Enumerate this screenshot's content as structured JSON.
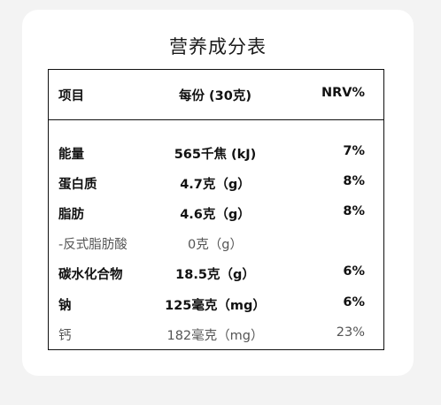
{
  "title": "营养成分表",
  "header": {
    "item": "项目",
    "amount": "每份 (30克)",
    "nrv": "NRV%"
  },
  "rows": [
    {
      "name": "能量",
      "amount": "565千焦 (kJ)",
      "nrv": "7%"
    },
    {
      "name": "蛋白质",
      "amount": "4.7克（g）",
      "nrv": "8%"
    },
    {
      "name": "脂肪",
      "amount": "4.6克（g）",
      "nrv": "8%"
    },
    {
      "name": "-反式脂肪酸",
      "amount": "0克（g）",
      "nrv": ""
    },
    {
      "name": "碳水化合物",
      "amount": "18.5克（g）",
      "nrv": "6%"
    },
    {
      "name": "钠",
      "amount": "125毫克（mg）",
      "nrv": "6%"
    },
    {
      "name": "钙",
      "amount": "182毫克（mg）",
      "nrv": "23%"
    }
  ]
}
